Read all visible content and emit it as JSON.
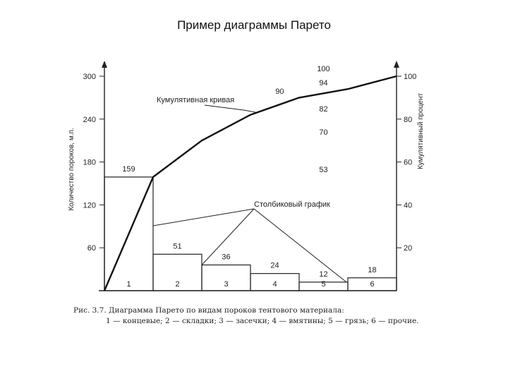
{
  "slide_title": "Пример диаграммы Парето",
  "caption": {
    "line1": "Рис. 3.7. Диаграмма Парето по видам пороков тентового материала:",
    "line2": "1 — концевые; 2 — складки; 3 — засечки; 4 — вмятины; 5 — грязь; 6 — прочие."
  },
  "chart_data": {
    "type": "bar",
    "categories": [
      "1",
      "2",
      "3",
      "4",
      "5",
      "6"
    ],
    "values": [
      159,
      51,
      36,
      24,
      12,
      18
    ],
    "cumulative_percent": [
      53,
      70,
      82,
      90,
      94,
      100
    ],
    "cumulative_labels": [
      "53",
      "70",
      "82",
      "90",
      "94",
      "100"
    ],
    "ylabel": "Количество пороков, м.п.",
    "ylabel_right": "Кумулятивный процент",
    "ylim": [
      0,
      300
    ],
    "yticks": [
      60,
      120,
      180,
      240,
      300
    ],
    "ylim_right": [
      0,
      100
    ],
    "yticks_right": [
      20,
      40,
      60,
      80,
      100
    ],
    "annotations": {
      "cumulative_curve": "Кумулятивная кривая",
      "bar_chart": "Столбиковый график"
    }
  }
}
